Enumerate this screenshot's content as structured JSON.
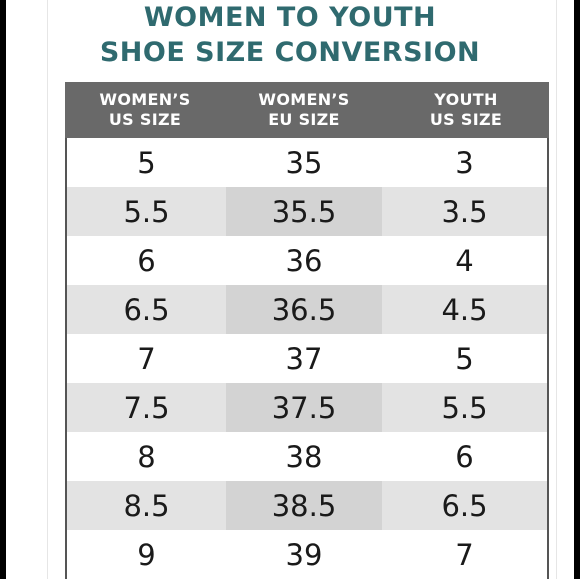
{
  "title": {
    "line1": "WOMEN TO YOUTH",
    "line2": "SHOE SIZE CONVERSION"
  },
  "colors": {
    "title": "#2f6a6f",
    "header_bg": "#696969",
    "row_alt_light": "#e3e3e3",
    "row_alt_dark": "#d3d3d3"
  },
  "table": {
    "headers": [
      {
        "line1": "WOMEN’S",
        "line2": "US SIZE"
      },
      {
        "line1": "WOMEN’S",
        "line2": "EU SIZE"
      },
      {
        "line1": "YOUTH",
        "line2": "US SIZE"
      }
    ],
    "rows": [
      [
        "5",
        "35",
        "3"
      ],
      [
        "5.5",
        "35.5",
        "3.5"
      ],
      [
        "6",
        "36",
        "4"
      ],
      [
        "6.5",
        "36.5",
        "4.5"
      ],
      [
        "7",
        "37",
        "5"
      ],
      [
        "7.5",
        "37.5",
        "5.5"
      ],
      [
        "8",
        "38",
        "6"
      ],
      [
        "8.5",
        "38.5",
        "6.5"
      ],
      [
        "9",
        "39",
        "7"
      ]
    ]
  }
}
